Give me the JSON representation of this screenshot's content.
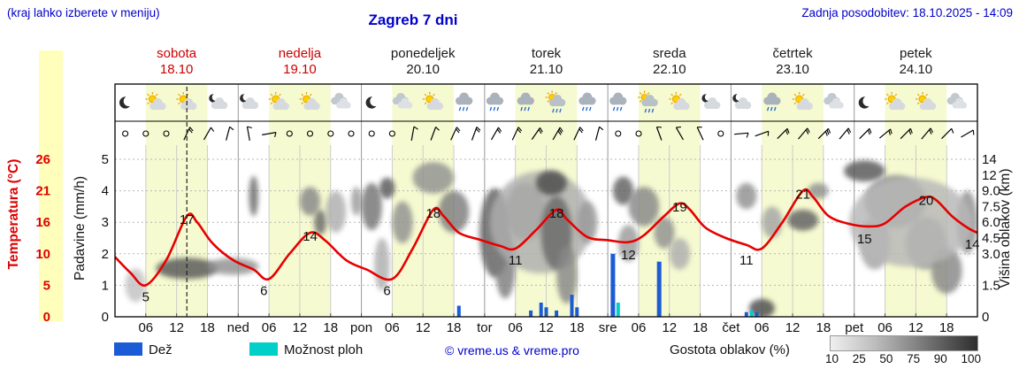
{
  "header": {
    "note": "(kraj lahko izberete v meniju)",
    "title": "Zagreb 7 dni",
    "updated": "Zadnja posodobitev: 18.10.2025 - 14:09"
  },
  "days": [
    {
      "name": "sobota",
      "date": "18.10",
      "red": true
    },
    {
      "name": "nedelja",
      "date": "19.10",
      "red": true
    },
    {
      "name": "ponedeljek",
      "date": "20.10",
      "red": false
    },
    {
      "name": "torek",
      "date": "21.10",
      "red": false
    },
    {
      "name": "sreda",
      "date": "22.10",
      "red": false
    },
    {
      "name": "četrtek",
      "date": "23.10",
      "red": false
    },
    {
      "name": "petek",
      "date": "24.10",
      "red": false
    }
  ],
  "axes": {
    "temp_label": "Temperatura (°C)",
    "precip_label": "Padavine (mm/h)",
    "cloud_label": "Višina oblakov (km)"
  },
  "legend": {
    "rain_label": "Dež",
    "showers_label": "Možnost ploh",
    "copyright": "© vreme.us & vreme.pro",
    "density_label": "Gostota oblakov (%)",
    "density_ticks": [
      "10",
      "25",
      "50",
      "75",
      "90",
      "100"
    ]
  },
  "colors": {
    "accent_blue": "#0000cc",
    "weekend_red": "#cc0000",
    "weekday_black": "#1a1a1a",
    "temp_line": "#e60000",
    "temp_axis_red": "#dd0000",
    "day_band": "#f6fad0",
    "rain_bar": "#1c5bd6",
    "showers_bar": "#00d0c8",
    "grid_light": "#cccccc",
    "grid_midnight": "#999999",
    "grid_dotted": "#b5b5b5"
  },
  "chart_data": {
    "type": "meteogram",
    "hours_range": [
      0,
      168
    ],
    "now_hour": 14,
    "day_band_hours": [
      6,
      18
    ],
    "temp_axis": {
      "anchors": [
        [
          0,
          0
        ],
        [
          5,
          1
        ],
        [
          10,
          2
        ],
        [
          16,
          3
        ],
        [
          21,
          4
        ],
        [
          26,
          5
        ]
      ],
      "tick_labels": [
        [
          "26",
          5
        ],
        [
          "21",
          4
        ],
        [
          "16",
          3
        ],
        [
          "10",
          2
        ],
        [
          "5",
          1
        ],
        [
          "0",
          0
        ]
      ]
    },
    "precip_axis": {
      "tick_labels": [
        [
          "5",
          5
        ],
        [
          "4",
          4
        ],
        [
          "3",
          3
        ],
        [
          "2",
          2
        ],
        [
          "1",
          1
        ],
        [
          "0",
          0
        ]
      ]
    },
    "cloud_axis": {
      "anchors": [
        [
          0,
          0
        ],
        [
          1.5,
          1
        ],
        [
          3,
          2
        ],
        [
          4.5,
          2.5
        ],
        [
          6,
          3
        ],
        [
          7.5,
          3.5
        ],
        [
          9,
          4
        ],
        [
          12,
          4.5
        ],
        [
          14,
          5
        ]
      ],
      "tick_labels": [
        [
          "14",
          5
        ],
        [
          "12",
          4.5
        ],
        [
          "9.0",
          4
        ],
        [
          "7.5",
          3.5
        ],
        [
          "6.0",
          3
        ],
        [
          "4.5",
          2.5
        ],
        [
          "3.0",
          2
        ],
        [
          "1.5",
          1
        ],
        [
          "0",
          0
        ]
      ]
    },
    "xaxis": {
      "hour_labels": [
        [
          "06",
          6
        ],
        [
          "12",
          12
        ],
        [
          "18",
          18
        ]
      ],
      "day_abbrevs": [
        "ned",
        "pon",
        "tor",
        "sre",
        "čet",
        "pet"
      ]
    },
    "temperature_series": [
      [
        0,
        9.5
      ],
      [
        3,
        7
      ],
      [
        6,
        5
      ],
      [
        10,
        9
      ],
      [
        14,
        17
      ],
      [
        16,
        16
      ],
      [
        19,
        12
      ],
      [
        23,
        9
      ],
      [
        27,
        7.5
      ],
      [
        30,
        6
      ],
      [
        34,
        10
      ],
      [
        38,
        14
      ],
      [
        41,
        12.5
      ],
      [
        45,
        9
      ],
      [
        49,
        7.5
      ],
      [
        54,
        6
      ],
      [
        58,
        11
      ],
      [
        62,
        18
      ],
      [
        64,
        17
      ],
      [
        67,
        14
      ],
      [
        71,
        12.7
      ],
      [
        75,
        11.5
      ],
      [
        78,
        11
      ],
      [
        82,
        14.5
      ],
      [
        86,
        18
      ],
      [
        88,
        16.5
      ],
      [
        92,
        13.2
      ],
      [
        96,
        12.6
      ],
      [
        100,
        12.2
      ],
      [
        103,
        13.5
      ],
      [
        107,
        17
      ],
      [
        110,
        19
      ],
      [
        112,
        18
      ],
      [
        115,
        15
      ],
      [
        119,
        13
      ],
      [
        123,
        11.7
      ],
      [
        126,
        11
      ],
      [
        130,
        16
      ],
      [
        134,
        21
      ],
      [
        136,
        20
      ],
      [
        139,
        17
      ],
      [
        143,
        15.7
      ],
      [
        147,
        15.2
      ],
      [
        150,
        15.8
      ],
      [
        154,
        18.5
      ],
      [
        158,
        20
      ],
      [
        160,
        19.5
      ],
      [
        163,
        17
      ],
      [
        166,
        15
      ],
      [
        168,
        14
      ]
    ],
    "temp_max_labels": [
      [
        14,
        17
      ],
      [
        38,
        14
      ],
      [
        62,
        18
      ],
      [
        86,
        18
      ],
      [
        110,
        19
      ],
      [
        134,
        21
      ],
      [
        158,
        20
      ]
    ],
    "temp_min_labels": [
      [
        6,
        5
      ],
      [
        29,
        6
      ],
      [
        53,
        6
      ],
      [
        78,
        11
      ],
      [
        100,
        12
      ],
      [
        123,
        11
      ],
      [
        146,
        15
      ],
      [
        167,
        14
      ]
    ],
    "precip_bars": [
      [
        67,
        0.35,
        "r"
      ],
      [
        81,
        0.2,
        "r"
      ],
      [
        83,
        0.45,
        "r"
      ],
      [
        84,
        0.3,
        "r"
      ],
      [
        86,
        0.2,
        "r"
      ],
      [
        89,
        0.7,
        "r"
      ],
      [
        90,
        0.3,
        "r"
      ],
      [
        97,
        2.0,
        "r"
      ],
      [
        98,
        0.45,
        "s"
      ],
      [
        106,
        1.75,
        "r"
      ],
      [
        123,
        0.15,
        "r"
      ],
      [
        124,
        0.2,
        "s"
      ],
      [
        125,
        0.15,
        "r"
      ]
    ],
    "cloud_blobs": [
      [
        4,
        2,
        1.5,
        0.8,
        20
      ],
      [
        14,
        6,
        2.3,
        0.5,
        75
      ],
      [
        23,
        5,
        2.4,
        0.4,
        45
      ],
      [
        27,
        0.9,
        8.5,
        2.4,
        65
      ],
      [
        38,
        2,
        8,
        1.5,
        50
      ],
      [
        40,
        1.2,
        6,
        1.2,
        65
      ],
      [
        43,
        2,
        7,
        2,
        30
      ],
      [
        47,
        1,
        8,
        1.5,
        40
      ],
      [
        50,
        2,
        7.5,
        2.5,
        60
      ],
      [
        53,
        1.5,
        9.5,
        1.5,
        75
      ],
      [
        56,
        2,
        6,
        2,
        45
      ],
      [
        52,
        1.5,
        2.5,
        1.5,
        30
      ],
      [
        62,
        4,
        11.5,
        2.5,
        45
      ],
      [
        66,
        3,
        7,
        2,
        55
      ],
      [
        74,
        3,
        5,
        3.5,
        70
      ],
      [
        76,
        2,
        2.5,
        2,
        55
      ],
      [
        80,
        4,
        7,
        3,
        50
      ],
      [
        83,
        10,
        6,
        4.5,
        30
      ],
      [
        85,
        3,
        10.5,
        2,
        80
      ],
      [
        86,
        3,
        5,
        3,
        65
      ],
      [
        88,
        2,
        2,
        1.5,
        50
      ],
      [
        92,
        2,
        6,
        2,
        40
      ],
      [
        99,
        2,
        9,
        1.8,
        70
      ],
      [
        103,
        3,
        7.5,
        2,
        50
      ],
      [
        100,
        2,
        4,
        1.5,
        40
      ],
      [
        107,
        2,
        5,
        1.5,
        45
      ],
      [
        110,
        2,
        3,
        1,
        30
      ],
      [
        123,
        2,
        8.5,
        1.5,
        45
      ],
      [
        126,
        2.5,
        0.4,
        0.5,
        80
      ],
      [
        128,
        2,
        6,
        1.5,
        35
      ],
      [
        134,
        3,
        6.2,
        1,
        70
      ],
      [
        137,
        2,
        9,
        1,
        45
      ],
      [
        146,
        4,
        12.5,
        1.5,
        75
      ],
      [
        152,
        6,
        8,
        3,
        45
      ],
      [
        148,
        3,
        4,
        2,
        35
      ],
      [
        158,
        4,
        4,
        2,
        40
      ],
      [
        162,
        3,
        2.2,
        1.2,
        50
      ],
      [
        166,
        2,
        6,
        3,
        45
      ],
      [
        155,
        12,
        6,
        4,
        25
      ]
    ],
    "weather_icons": [
      "moon",
      "partly",
      "partly",
      "cloudmoon",
      "cloudmoon",
      "partly",
      "partly",
      "cloud",
      "moon",
      "cloud",
      "partly",
      "rain",
      "rain",
      "rain",
      "showersun",
      "rain",
      "rain",
      "showersun",
      "partly",
      "cloudmoon",
      "cloudmoon",
      "rain",
      "partly",
      "cloud",
      "moon",
      "partly",
      "partly",
      "cloud"
    ],
    "wind": [
      "c",
      "c",
      "c",
      "25/2",
      "30/1",
      "15/1",
      "-10/1",
      "80/1",
      "c",
      "c",
      "c",
      "c",
      "c",
      "c",
      "10/1",
      "20/1",
      "25/2",
      "20/2",
      "30/2",
      "25/2",
      "35/2",
      "30/3",
      "25/2",
      "15/1",
      "c",
      "c",
      "-20/1",
      "-30/1",
      "-25/1",
      "c",
      "85/1",
      "70/1",
      "45/2",
      "40/2",
      "45/3",
      "40/2",
      "45/2",
      "50/2",
      "45/2",
      "40/2",
      "45/1",
      "60/1"
    ]
  }
}
